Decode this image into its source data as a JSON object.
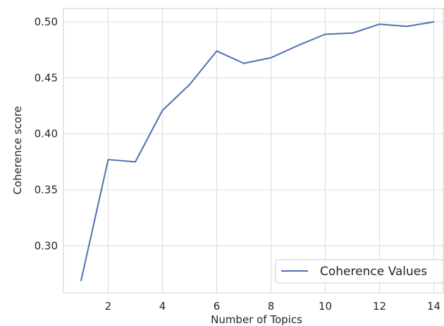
{
  "chart_data": {
    "type": "line",
    "title": "",
    "xlabel": "Number of Topics",
    "ylabel": "Coherence score",
    "xlim": [
      0.35,
      14.35
    ],
    "ylim": [
      0.258,
      0.512
    ],
    "xticks": [
      2,
      4,
      6,
      8,
      10,
      12,
      14
    ],
    "yticks": [
      0.3,
      0.35,
      0.4,
      0.45,
      0.5
    ],
    "xtick_labels": [
      "2",
      "4",
      "6",
      "8",
      "10",
      "12",
      "14"
    ],
    "ytick_labels": [
      "0.30",
      "0.35",
      "0.40",
      "0.45",
      "0.50"
    ],
    "grid": true,
    "legend_position": "lower-right",
    "series": [
      {
        "name": "Coherence Values",
        "color": "#4c72b0",
        "x": [
          1,
          2,
          3,
          4,
          5,
          6,
          7,
          8,
          9,
          10,
          11,
          12,
          13,
          14
        ],
        "y": [
          0.269,
          0.377,
          0.375,
          0.421,
          0.444,
          0.474,
          0.463,
          0.468,
          0.479,
          0.489,
          0.49,
          0.498,
          0.496,
          0.5
        ]
      }
    ]
  }
}
